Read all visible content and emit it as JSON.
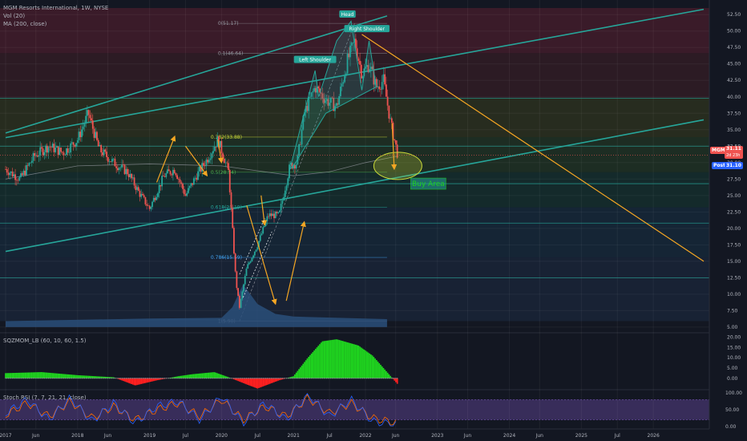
{
  "legend": {
    "symbol_line": "MGM Resorts International, 1W, NYSE",
    "vol_line": "Vol (20)",
    "ma_line": "MA (200, close)",
    "sqzmom_line": "SQZMOM_LB (60, 10, 60, 1.5)",
    "stoch_line": "Stoch RSI (7, 7, 21, 21, close)"
  },
  "price_badges": {
    "ticker": "MGM",
    "last_price": "31.11",
    "countdown": "2d 23h",
    "post_label": "Post",
    "post_price": "31.10"
  },
  "colors": {
    "background": "#131722",
    "up_candle": "#26a69a",
    "down_candle": "#ef5350",
    "trend_channel": "#26a69a",
    "arrow": "#f5a623",
    "last_price_badge": "#ef5350",
    "post_badge": "#2962ff",
    "volume_fill": "#2a4f7a",
    "momentum_up": "#1fd11f",
    "momentum_down": "#ff2020",
    "stoch_k": "#2962ff",
    "stoch_d": "#ff6d00",
    "stoch_band": "#7e57c2"
  },
  "chart_data": {
    "type": "candlestick",
    "title": "MGM Resorts International, 1W, NYSE",
    "x_tick_labels": [
      "2017",
      "Jun",
      "2018",
      "Jun",
      "2019",
      "Jul",
      "2020",
      "Jul",
      "2021",
      "Jul",
      "2022",
      "Jun",
      "2023",
      "Jun",
      "2024",
      "Jun",
      "2025",
      "Jul",
      "2026"
    ],
    "y_tick_labels_main": [
      "5.00",
      "7.50",
      "10.00",
      "12.50",
      "15.00",
      "17.50",
      "20.00",
      "22.50",
      "25.00",
      "27.50",
      "30.00",
      "32.50",
      "35.00",
      "37.50",
      "40.00",
      "42.50",
      "45.00",
      "47.50",
      "50.00",
      "52.50"
    ],
    "ylim": [
      4.5,
      53.5
    ],
    "price_path": [
      [
        2017.0,
        29.0
      ],
      [
        2017.2,
        27.5
      ],
      [
        2017.4,
        31.0
      ],
      [
        2017.6,
        32.5
      ],
      [
        2017.8,
        31.5
      ],
      [
        2018.0,
        33.5
      ],
      [
        2018.15,
        37.5
      ],
      [
        2018.3,
        32.0
      ],
      [
        2018.5,
        30.0
      ],
      [
        2018.7,
        28.5
      ],
      [
        2018.85,
        25.5
      ],
      [
        2019.0,
        23.0
      ],
      [
        2019.2,
        28.0
      ],
      [
        2019.35,
        29.0
      ],
      [
        2019.5,
        25.0
      ],
      [
        2019.65,
        28.0
      ],
      [
        2019.8,
        30.5
      ],
      [
        2019.95,
        33.5
      ],
      [
        2020.1,
        28.5
      ],
      [
        2020.2,
        12.0
      ],
      [
        2020.25,
        8.0
      ],
      [
        2020.35,
        14.0
      ],
      [
        2020.5,
        17.5
      ],
      [
        2020.65,
        22.0
      ],
      [
        2020.8,
        22.0
      ],
      [
        2020.95,
        29.5
      ],
      [
        2021.05,
        30.0
      ],
      [
        2021.15,
        37.5
      ],
      [
        2021.3,
        41.5
      ],
      [
        2021.45,
        39.5
      ],
      [
        2021.6,
        38.5
      ],
      [
        2021.75,
        45.5
      ],
      [
        2021.85,
        48.5
      ],
      [
        2021.95,
        43.5
      ],
      [
        2022.05,
        45.0
      ],
      [
        2022.15,
        41.5
      ],
      [
        2022.25,
        42.5
      ],
      [
        2022.35,
        36.0
      ],
      [
        2022.45,
        31.1
      ]
    ],
    "moving_average_200": {
      "name": "MA (200, close)",
      "points": [
        [
          2017.0,
          27.5
        ],
        [
          2018.0,
          29.5
        ],
        [
          2019.0,
          29.8
        ],
        [
          2020.0,
          29.5
        ],
        [
          2021.0,
          28.0
        ],
        [
          2021.5,
          28.6
        ],
        [
          2022.0,
          30.0
        ],
        [
          2022.45,
          31.0
        ]
      ]
    },
    "fib_levels": [
      {
        "label": "0(51.17)",
        "value": 51.17,
        "color": "#9598a1"
      },
      {
        "label": "0.1(46.64)",
        "value": 46.64,
        "color": "#9598a1"
      },
      {
        "label": "0.382(33.88)",
        "value": 33.88,
        "color": "#cddc39"
      },
      {
        "label": "0.5(28.54)",
        "value": 28.54,
        "color": "#4caf50"
      },
      {
        "label": "0.618(23.19)",
        "value": 23.19,
        "color": "#26a69a"
      },
      {
        "label": "0.786(15.59)",
        "value": 15.59,
        "color": "#42a5f5"
      },
      {
        "label": "1(5.90)",
        "value": 5.9,
        "color": "#9598a1"
      }
    ],
    "horizontal_levels": [
      39.8,
      32.5,
      26.8,
      20.8,
      12.5
    ],
    "trend_lines": [
      {
        "points": [
          [
            2017.0,
            34.5
          ],
          [
            2022.3,
            52.3
          ]
        ]
      },
      {
        "points": [
          [
            2017.0,
            33.8
          ],
          [
            2026.7,
            53.3
          ]
        ]
      },
      {
        "points": [
          [
            2017.0,
            16.5
          ],
          [
            2026.7,
            36.5
          ]
        ]
      }
    ],
    "projection_line": {
      "points": [
        [
          2021.95,
          49.5
        ],
        [
          2026.7,
          15.0
        ]
      ]
    },
    "annotations": [
      "Head",
      "Left Shoulder",
      "Right Shoulder",
      "Buy Area"
    ],
    "volume_points": [
      [
        2017.0,
        5.9
      ],
      [
        2019.0,
        6.3
      ],
      [
        2020.0,
        6.4
      ],
      [
        2020.15,
        8.0
      ],
      [
        2020.3,
        11.5
      ],
      [
        2020.5,
        8.5
      ],
      [
        2020.75,
        7.0
      ],
      [
        2021.0,
        6.6
      ],
      [
        2022.3,
        6.2
      ]
    ],
    "sqzmom": {
      "name": "SQZMOM_LB (60, 10, 60, 1.5)",
      "y_tick_labels": [
        "20.00",
        "15.00",
        "10.00",
        "5.00",
        "0.00"
      ],
      "ylim": [
        -4.0,
        21.0
      ],
      "points": [
        [
          2017.0,
          2.5
        ],
        [
          2017.5,
          3.0
        ],
        [
          2018.0,
          1.5
        ],
        [
          2018.5,
          0.5
        ],
        [
          2018.8,
          -3.5
        ],
        [
          2019.1,
          -1.0
        ],
        [
          2019.4,
          1.0
        ],
        [
          2019.6,
          2.0
        ],
        [
          2019.9,
          3.0
        ],
        [
          2020.1,
          0.5
        ],
        [
          2020.35,
          -3.0
        ],
        [
          2020.5,
          -5.0
        ],
        [
          2020.8,
          -1.0
        ],
        [
          2021.0,
          1.0
        ],
        [
          2021.2,
          10.0
        ],
        [
          2021.4,
          18.0
        ],
        [
          2021.6,
          19.0
        ],
        [
          2021.9,
          16.0
        ],
        [
          2022.1,
          11.0
        ],
        [
          2022.3,
          3.0
        ],
        [
          2022.45,
          -3.0
        ]
      ]
    },
    "stoch_rsi": {
      "name": "Stoch RSI (7, 7, 21, 21, close)",
      "y_tick_labels": [
        "100.00",
        "50.00",
        "0.00"
      ],
      "ylim": [
        0,
        100
      ],
      "band": [
        20,
        80
      ],
      "k_points": [
        [
          2017.0,
          40
        ],
        [
          2017.3,
          80
        ],
        [
          2017.6,
          20
        ],
        [
          2017.9,
          85
        ],
        [
          2018.2,
          15
        ],
        [
          2018.5,
          70
        ],
        [
          2018.8,
          10
        ],
        [
          2019.1,
          60
        ],
        [
          2019.4,
          75
        ],
        [
          2019.7,
          20
        ],
        [
          2020.0,
          90
        ],
        [
          2020.3,
          10
        ],
        [
          2020.6,
          70
        ],
        [
          2020.9,
          20
        ],
        [
          2021.2,
          95
        ],
        [
          2021.5,
          30
        ],
        [
          2021.8,
          80
        ],
        [
          2022.1,
          15
        ],
        [
          2022.45,
          5
        ]
      ],
      "d_points": [
        [
          2017.0,
          35
        ],
        [
          2017.3,
          70
        ],
        [
          2017.6,
          30
        ],
        [
          2017.9,
          75
        ],
        [
          2018.2,
          25
        ],
        [
          2018.5,
          60
        ],
        [
          2018.8,
          20
        ],
        [
          2019.1,
          50
        ],
        [
          2019.4,
          70
        ],
        [
          2019.7,
          30
        ],
        [
          2020.0,
          80
        ],
        [
          2020.3,
          20
        ],
        [
          2020.6,
          60
        ],
        [
          2020.9,
          30
        ],
        [
          2021.2,
          85
        ],
        [
          2021.5,
          40
        ],
        [
          2021.8,
          70
        ],
        [
          2022.1,
          25
        ],
        [
          2022.45,
          10
        ]
      ]
    }
  }
}
